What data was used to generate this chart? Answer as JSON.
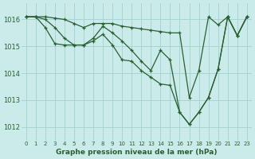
{
  "background_color": "#cbeaea",
  "grid_color": "#a8d4d4",
  "line_color": "#2a6030",
  "marker_color": "#2a6030",
  "title": "Graphe pression niveau de la mer (hPa)",
  "xlim": [
    -0.5,
    23.5
  ],
  "ylim": [
    1011.5,
    1016.6
  ],
  "yticks": [
    1012,
    1013,
    1014,
    1015,
    1016
  ],
  "xticks": [
    0,
    1,
    2,
    3,
    4,
    5,
    6,
    7,
    8,
    9,
    10,
    11,
    12,
    13,
    14,
    15,
    16,
    17,
    18,
    19,
    20,
    21,
    22,
    23
  ],
  "series1": [
    1016.1,
    1016.1,
    1016.1,
    1016.05,
    1016.0,
    1015.85,
    1015.7,
    1015.85,
    1015.85,
    1015.85,
    1015.75,
    1015.7,
    1015.65,
    1015.6,
    1015.55,
    1015.5,
    1015.5,
    1013.1,
    1014.1,
    1016.1,
    1015.8,
    1016.1,
    1015.4,
    1016.1
  ],
  "series2": [
    1016.1,
    1016.1,
    1016.0,
    1015.7,
    1015.3,
    1015.05,
    1015.05,
    1015.3,
    1015.75,
    1015.5,
    1015.2,
    1014.85,
    1014.45,
    1014.1,
    1014.85,
    1014.5,
    1012.55,
    1012.1,
    1012.55,
    1013.1,
    1014.15,
    1016.1,
    1015.4,
    1016.1
  ],
  "series3": [
    1016.1,
    1016.1,
    1015.7,
    1015.1,
    1015.05,
    1015.05,
    1015.05,
    1015.2,
    1015.45,
    1015.05,
    1014.5,
    1014.45,
    1014.1,
    1013.85,
    1013.6,
    1013.55,
    1012.55,
    1012.1,
    1012.55,
    1013.1,
    1014.15,
    1016.1,
    1015.4,
    1016.1
  ]
}
